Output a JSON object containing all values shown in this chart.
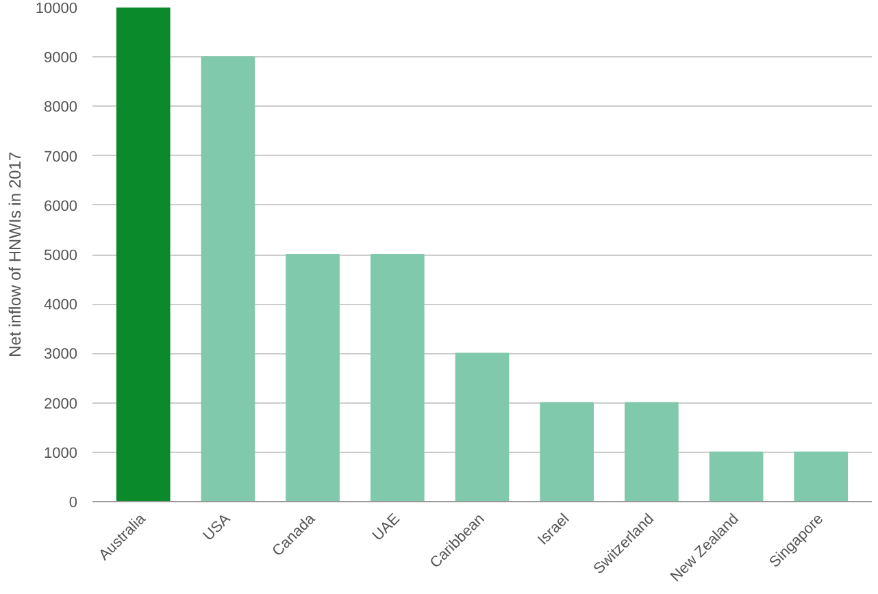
{
  "chart_data": {
    "type": "bar",
    "ylabel": "Net inflow of HNWIs in 2017",
    "categories": [
      "Australia",
      "USA",
      "Canada",
      "UAE",
      "Caribbean",
      "Israel",
      "Switzerland",
      "New Zealand",
      "Singapore"
    ],
    "values": [
      10000,
      9000,
      5000,
      5000,
      3000,
      2000,
      2000,
      1000,
      1000
    ],
    "colors": [
      "#0b8a2c",
      "#80c9ac",
      "#80c9ac",
      "#80c9ac",
      "#80c9ac",
      "#80c9ac",
      "#80c9ac",
      "#80c9ac",
      "#80c9ac"
    ],
    "ylim": [
      0,
      10000
    ],
    "yticks": [
      0,
      1000,
      2000,
      3000,
      4000,
      5000,
      6000,
      7000,
      8000,
      9000,
      10000
    ],
    "grid": "y"
  }
}
